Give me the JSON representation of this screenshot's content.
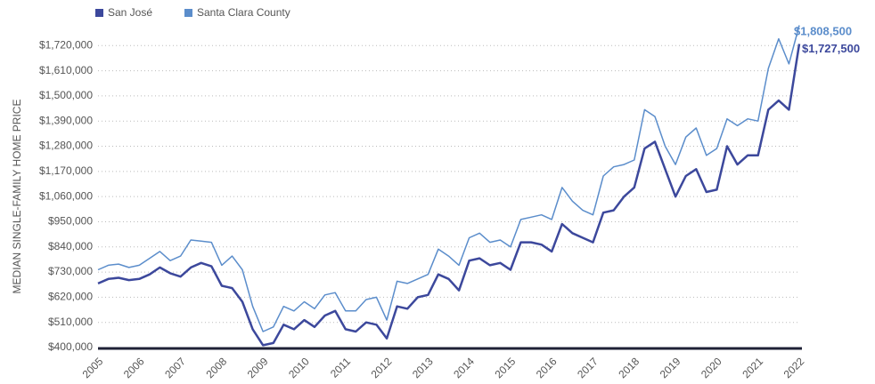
{
  "chart_data": {
    "type": "line",
    "y_label": "MEDIAN SINGLE-FAMILY HOME PRICE",
    "x": [
      2005,
      2005.25,
      2005.5,
      2005.75,
      2006,
      2006.25,
      2006.5,
      2006.75,
      2007,
      2007.25,
      2007.5,
      2007.75,
      2008,
      2008.25,
      2008.5,
      2008.75,
      2009,
      2009.25,
      2009.5,
      2009.75,
      2010,
      2010.25,
      2010.5,
      2010.75,
      2011,
      2011.25,
      2011.5,
      2011.75,
      2012,
      2012.25,
      2012.5,
      2012.75,
      2013,
      2013.25,
      2013.5,
      2013.75,
      2014,
      2014.25,
      2014.5,
      2014.75,
      2015,
      2015.25,
      2015.5,
      2015.75,
      2016,
      2016.25,
      2016.5,
      2016.75,
      2017,
      2017.25,
      2017.5,
      2017.75,
      2018,
      2018.25,
      2018.5,
      2018.75,
      2019,
      2019.25,
      2019.5,
      2019.75,
      2020,
      2020.25,
      2020.5,
      2020.75,
      2021,
      2021.25,
      2021.5,
      2021.75,
      2022
    ],
    "series": [
      {
        "name": "San José",
        "color": "#3c489c",
        "width": 2.5,
        "values": [
          680000,
          700000,
          705000,
          695000,
          700000,
          720000,
          750000,
          725000,
          710000,
          750000,
          770000,
          755000,
          670000,
          660000,
          600000,
          480000,
          410000,
          420000,
          500000,
          480000,
          520000,
          490000,
          540000,
          560000,
          480000,
          470000,
          510000,
          500000,
          440000,
          580000,
          570000,
          620000,
          630000,
          720000,
          700000,
          650000,
          780000,
          790000,
          760000,
          770000,
          740000,
          860000,
          860000,
          850000,
          820000,
          940000,
          900000,
          880000,
          860000,
          990000,
          1000000,
          1060000,
          1100000,
          1270000,
          1300000,
          1180000,
          1060000,
          1150000,
          1180000,
          1080000,
          1090000,
          1280000,
          1200000,
          1240000,
          1240000,
          1440000,
          1480000,
          1440000,
          1727500
        ]
      },
      {
        "name": "Santa Clara County",
        "color": "#5b8dcb",
        "width": 1.5,
        "values": [
          740000,
          760000,
          765000,
          750000,
          760000,
          790000,
          820000,
          780000,
          800000,
          870000,
          865000,
          860000,
          760000,
          800000,
          740000,
          580000,
          470000,
          490000,
          580000,
          560000,
          600000,
          570000,
          630000,
          640000,
          560000,
          560000,
          610000,
          620000,
          520000,
          690000,
          680000,
          700000,
          720000,
          830000,
          800000,
          760000,
          880000,
          900000,
          860000,
          870000,
          840000,
          960000,
          970000,
          980000,
          960000,
          1100000,
          1040000,
          1000000,
          980000,
          1150000,
          1190000,
          1200000,
          1220000,
          1440000,
          1410000,
          1280000,
          1200000,
          1320000,
          1360000,
          1240000,
          1270000,
          1400000,
          1370000,
          1400000,
          1390000,
          1620000,
          1750000,
          1640000,
          1808500
        ]
      }
    ],
    "annotations": [
      "$1,727,500",
      "$1,808,500"
    ],
    "xlim": [
      2005,
      2022
    ],
    "xticks": [
      2005,
      2006,
      2007,
      2008,
      2009,
      2010,
      2011,
      2012,
      2013,
      2014,
      2015,
      2016,
      2017,
      2018,
      2019,
      2020,
      2021,
      2022
    ],
    "ylim": [
      400000,
      1830000
    ],
    "yticks": [
      {
        "value": 400000,
        "label": "$400,000"
      },
      {
        "value": 510000,
        "label": "$510,000"
      },
      {
        "value": 620000,
        "label": "$620,000"
      },
      {
        "value": 730000,
        "label": "$730,000"
      },
      {
        "value": 840000,
        "label": "$840,000"
      },
      {
        "value": 950000,
        "label": "$950,000"
      },
      {
        "value": 1060000,
        "label": "$1,060,000"
      },
      {
        "value": 1170000,
        "label": "$1,170,000"
      },
      {
        "value": 1280000,
        "label": "$1,280,000"
      },
      {
        "value": 1390000,
        "label": "$1,390,000"
      },
      {
        "value": 1500000,
        "label": "$1,500,000"
      },
      {
        "value": 1610000,
        "label": "$1,610,000"
      },
      {
        "value": 1720000,
        "label": "$1,720,000"
      }
    ],
    "grid": true
  }
}
